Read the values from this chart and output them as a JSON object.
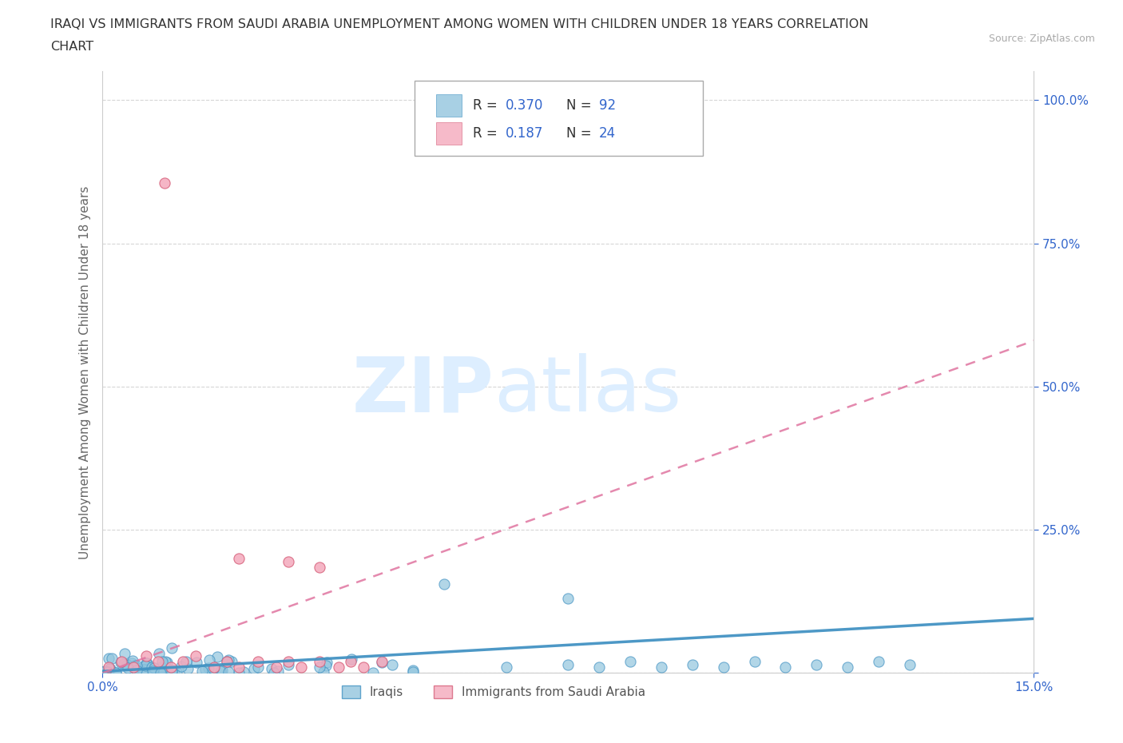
{
  "title_line1": "IRAQI VS IMMIGRANTS FROM SAUDI ARABIA UNEMPLOYMENT AMONG WOMEN WITH CHILDREN UNDER 18 YEARS CORRELATION",
  "title_line2": "CHART",
  "source": "Source: ZipAtlas.com",
  "ylabel": "Unemployment Among Women with Children Under 18 years",
  "xlim": [
    0.0,
    0.15
  ],
  "ylim": [
    0.0,
    1.05
  ],
  "ytick_positions": [
    0.0,
    0.25,
    0.5,
    0.75,
    1.0
  ],
  "ytick_labels": [
    "",
    "25.0%",
    "50.0%",
    "75.0%",
    "100.0%"
  ],
  "iraqi_color": "#92c5de",
  "iraqi_edge_color": "#4393c3",
  "saudi_color": "#f4a9bc",
  "saudi_edge_color": "#d6607a",
  "iraqi_R": 0.37,
  "iraqi_N": 92,
  "saudi_R": 0.187,
  "saudi_N": 24,
  "background_color": "#ffffff",
  "grid_color": "#cccccc",
  "legend_label_iraqi": "Iraqis",
  "legend_label_saudi": "Immigrants from Saudi Arabia",
  "axis_color": "#3366cc",
  "text_color": "#333333",
  "source_color": "#aaaaaa",
  "watermark_color": "#ddeeff",
  "iraqi_trendline_color": "#4393c3",
  "saudi_trendline_color": "#e075a0",
  "iraqi_trendline_style": "solid",
  "saudi_trendline_style": "dashed",
  "iraqi_trend_y0": 0.003,
  "iraqi_trend_y1": 0.095,
  "saudi_trend_y0": 0.0,
  "saudi_trend_y1": 0.58
}
